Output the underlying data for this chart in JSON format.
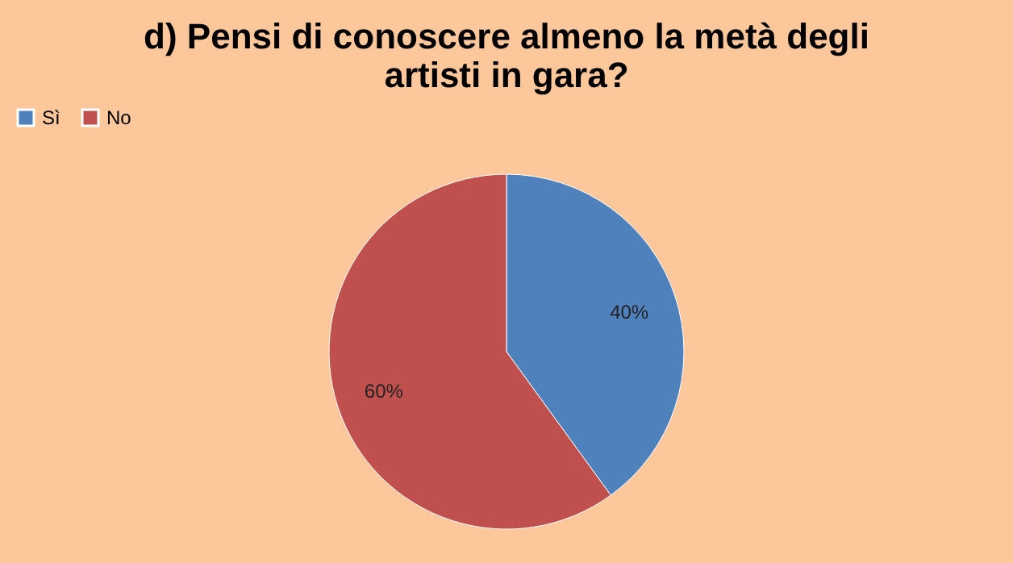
{
  "chart_data": {
    "type": "pie",
    "title": "d) Pensi di conoscere almeno la metà degli artisti in gara?",
    "categories": [
      "Sì",
      "No"
    ],
    "values": [
      40,
      60
    ],
    "colors": [
      "#4f81bd",
      "#c0504d"
    ],
    "value_labels": [
      "40%",
      "60%"
    ],
    "legend": "top"
  }
}
